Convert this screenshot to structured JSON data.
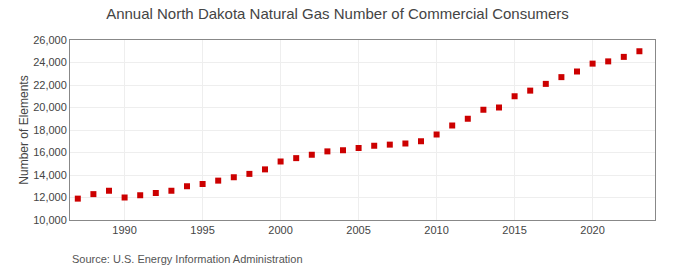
{
  "chart_data": {
    "type": "scatter",
    "title": "Annual North Dakota Natural Gas Number of Commercial Consumers",
    "ylabel": "Number of Elements",
    "annotations": [
      "Source: U.S. Energy Information Administration"
    ],
    "x": [
      1987,
      1988,
      1989,
      1990,
      1991,
      1992,
      1993,
      1994,
      1995,
      1996,
      1997,
      1998,
      1999,
      2000,
      2001,
      2002,
      2003,
      2004,
      2005,
      2006,
      2007,
      2008,
      2009,
      2010,
      2011,
      2012,
      2013,
      2014,
      2015,
      2016,
      2017,
      2018,
      2019,
      2020,
      2021,
      2022,
      2023
    ],
    "values": [
      11900,
      12300,
      12600,
      12000,
      12200,
      12400,
      12600,
      13000,
      13200,
      13500,
      13800,
      14100,
      14500,
      15200,
      15500,
      15800,
      16100,
      16200,
      16400,
      16600,
      16700,
      16800,
      17000,
      17600,
      18400,
      19000,
      19800,
      20000,
      21000,
      21500,
      22100,
      22700,
      23200,
      23900,
      24100,
      24500,
      25000
    ],
    "color": "#cc0000",
    "marker": "square",
    "xlim": [
      1986.5,
      2024
    ],
    "xticks": [
      1990,
      1995,
      2000,
      2005,
      2010,
      2015,
      2020
    ],
    "ylim": [
      10000,
      26000
    ],
    "yticks": [
      {
        "value": 10000,
        "label": "10,000"
      },
      {
        "value": 12000,
        "label": "12,000"
      },
      {
        "value": 14000,
        "label": "14,000"
      },
      {
        "value": 16000,
        "label": "16,000"
      },
      {
        "value": 18000,
        "label": "18,000"
      },
      {
        "value": 20000,
        "label": "20,000"
      },
      {
        "value": 22000,
        "label": "22,000"
      },
      {
        "value": 24000,
        "label": "24,000"
      },
      {
        "value": 26000,
        "label": "26,000"
      }
    ],
    "grid": true
  }
}
